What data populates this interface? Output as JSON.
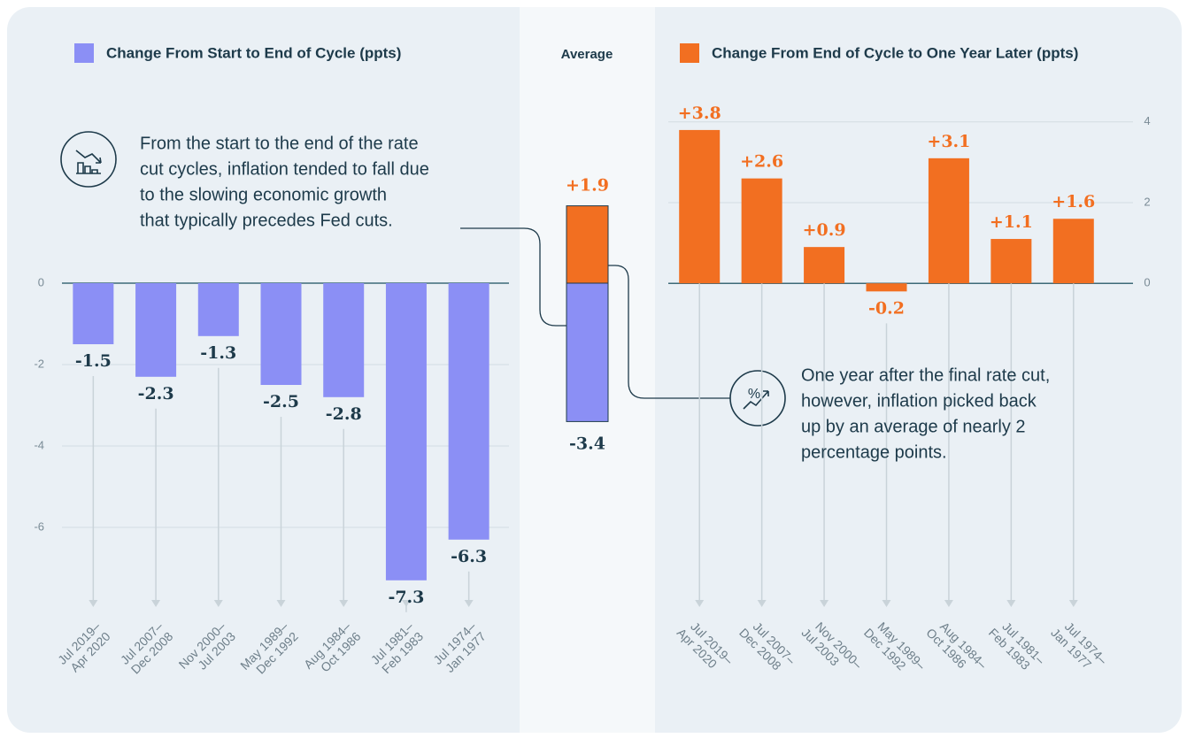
{
  "chart_data": [
    {
      "type": "bar",
      "series": [
        {
          "name": "Change From Start to End of Cycle (ppts)",
          "color": "#8b8ff5",
          "values": [
            -1.5,
            -2.3,
            -1.3,
            -2.5,
            -2.8,
            -7.3,
            -6.3
          ]
        }
      ],
      "categories": [
        [
          "Jul 2019–",
          "Apr 2020"
        ],
        [
          "Jul 2007–",
          "Dec 2008"
        ],
        [
          "Nov 2000–",
          "Jul 2003"
        ],
        [
          "May 1989–",
          "Dec 1992"
        ],
        [
          "Aug 1984–",
          "Oct 1986"
        ],
        [
          "Jul 1981–",
          "Feb 1983"
        ],
        [
          "Jul 1974–",
          "Jan 1977"
        ]
      ],
      "ylim": [
        -8,
        0.5
      ],
      "yticks": [
        0,
        -2,
        -4,
        -6
      ],
      "grid": true,
      "annotation": [
        "From the start to the end of the rate",
        "cut cycles, inflation tended to fall due",
        "to the slowing economic growth",
        "that typically precedes Fed cuts."
      ]
    },
    {
      "type": "stacked_bar",
      "title": "Average",
      "series": [
        {
          "name": "Change From Start to End of Cycle (ppts)",
          "color": "#8b8ff5",
          "values": [
            -3.4
          ],
          "value_labels": [
            "-3.4"
          ]
        },
        {
          "name": "Change From End of Cycle to One Year Later (ppts)",
          "color": "#f26f21",
          "values": [
            1.9
          ],
          "value_labels": [
            "+1.9"
          ]
        }
      ],
      "ylim": [
        -8,
        2.5
      ]
    },
    {
      "type": "bar",
      "series": [
        {
          "name": "Change From End of Cycle to One Year Later (ppts)",
          "color": "#f26f21",
          "values": [
            3.8,
            2.6,
            0.9,
            -0.2,
            3.1,
            1.1,
            1.6
          ],
          "value_labels": [
            "+3.8",
            "+2.6",
            "+0.9",
            "-0.2",
            "+3.1",
            "+1.1",
            "+1.6"
          ]
        }
      ],
      "categories": [
        [
          "Jul 2019–",
          "Apr 2020"
        ],
        [
          "Jul 2007–",
          "Dec 2008"
        ],
        [
          "Nov 2000–",
          "Jul 2003"
        ],
        [
          "May 1989–",
          "Dec 1992"
        ],
        [
          "Aug 1984–",
          "Oct 1986"
        ],
        [
          "Jul 1981–",
          "Feb 1983"
        ],
        [
          "Jul 1974–",
          "Jan 1977"
        ]
      ],
      "ylim": [
        -0.5,
        4.5
      ],
      "yticks": [
        4,
        2,
        0
      ],
      "grid": true,
      "annotation": [
        "One year after the final rate cut,",
        "however, inflation picked back",
        "up by an average of nearly 2",
        "percentage points."
      ]
    }
  ]
}
